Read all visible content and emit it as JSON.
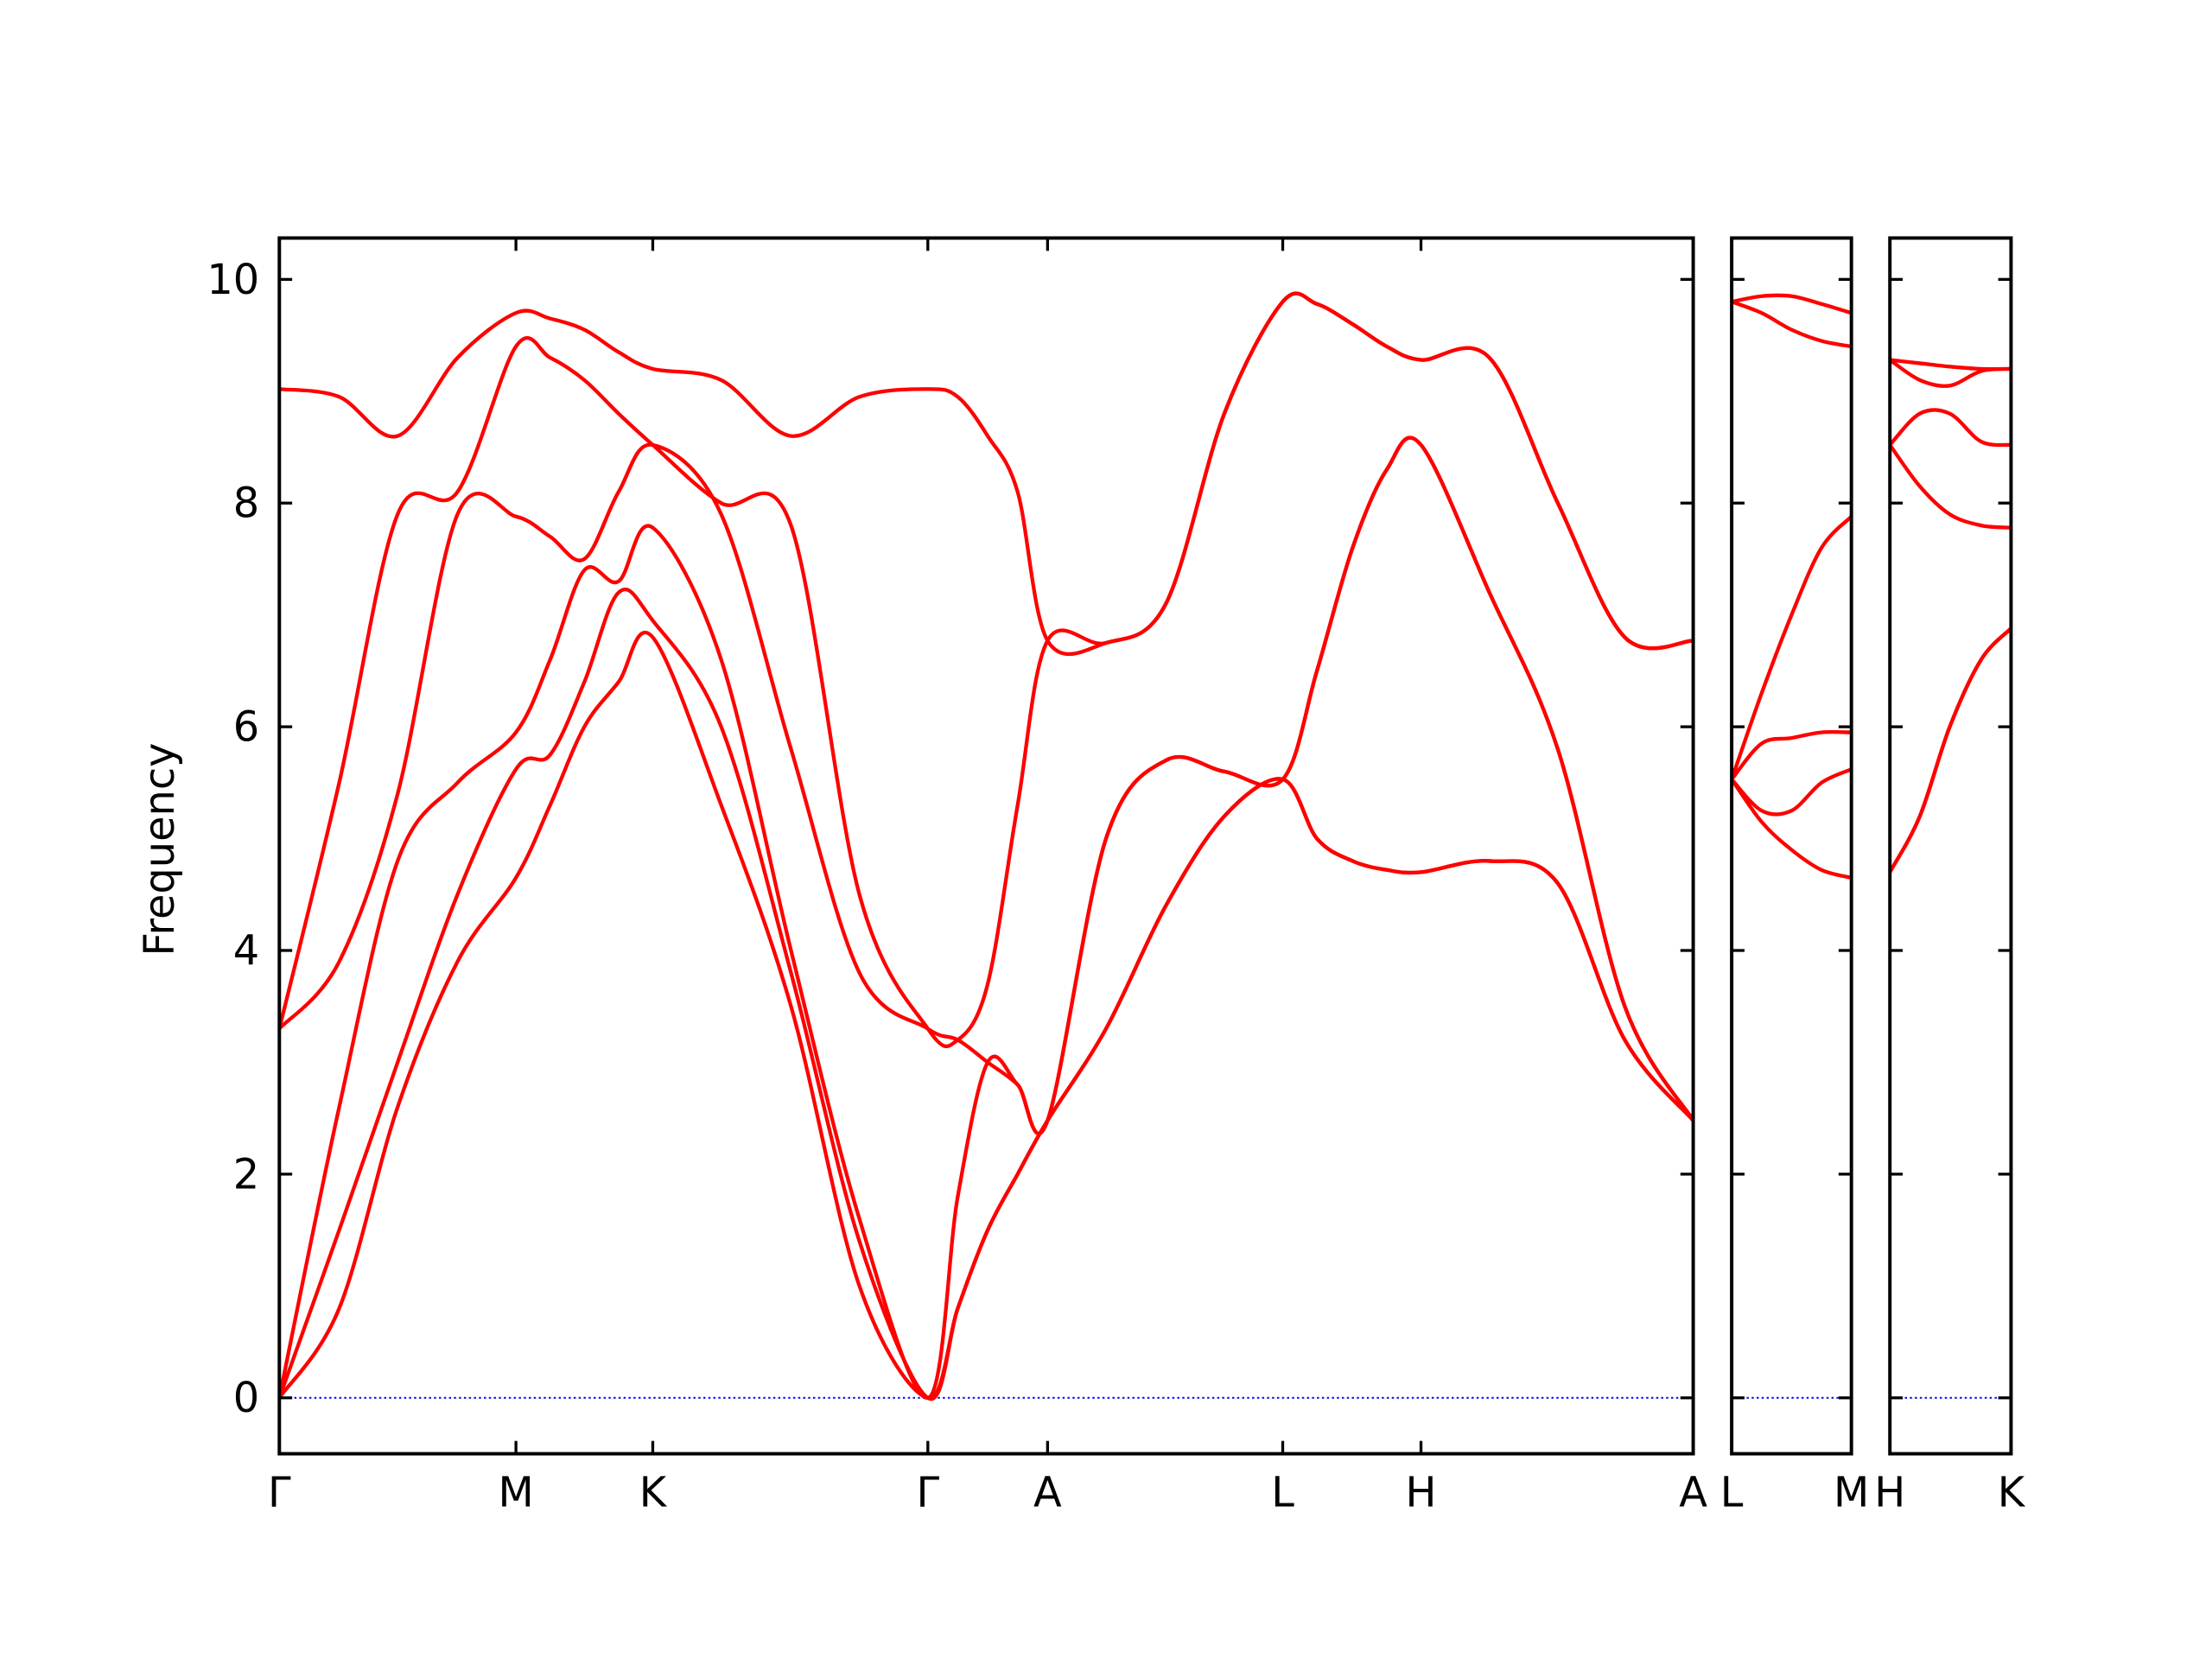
{
  "chart_data": [
    {
      "type": "line",
      "ylabel": "Frequency",
      "x": [
        0,
        0.42,
        0.83,
        1.25,
        1.66,
        1.9,
        2.14,
        2.38,
        2.62,
        3.1,
        3.59,
        4.07,
        4.55,
        4.76,
        4.97,
        5.18,
        5.39,
        5.8,
        6.22,
        6.63,
        7.04,
        7.28,
        7.53,
        7.77,
        8.01,
        8.49,
        8.97,
        9.44,
        9.92
      ],
      "xlim": [
        0,
        9.92
      ],
      "xticks": [
        {
          "value": 0,
          "label": "Γ"
        },
        {
          "value": 1.66,
          "label": "M"
        },
        {
          "value": 2.62,
          "label": "K"
        },
        {
          "value": 4.55,
          "label": "Γ"
        },
        {
          "value": 5.39,
          "label": "A"
        },
        {
          "value": 7.04,
          "label": "L"
        },
        {
          "value": 8.01,
          "label": "H"
        },
        {
          "value": 9.92,
          "label": "A"
        }
      ],
      "ylim": [
        -0.5,
        10.37
      ],
      "yticks": [
        0,
        2,
        4,
        6,
        8,
        10
      ],
      "zero_line": {
        "value": 0,
        "color": "#0000ff"
      },
      "series": [
        {
          "color": "#ff0000",
          "values": [
            0,
            0.8,
            2.6,
            3.9,
            4.65,
            5.3,
            6.0,
            6.4,
            6.8,
            5.3,
            3.5,
            1.0,
            0,
            0.8,
            1.5,
            2.0,
            2.48,
            3.3,
            4.4,
            5.2,
            5.53,
            5.0,
            4.8,
            4.72,
            4.7,
            4.8,
            4.6,
            3.2,
            2.48
          ]
        },
        {
          "color": "#ff0000",
          "values": [
            0,
            1.5,
            3.0,
            4.5,
            5.62,
            5.75,
            6.4,
            7.2,
            6.95,
            6.0,
            3.8,
            1.4,
            0,
            0.8,
            1.5,
            2.0,
            2.48,
            3.3,
            4.4,
            5.2,
            5.53,
            5.0,
            4.8,
            4.72,
            4.7,
            4.8,
            4.6,
            3.2,
            2.48
          ]
        },
        {
          "color": "#ff0000",
          "values": [
            0,
            2.6,
            4.8,
            5.5,
            5.95,
            6.6,
            7.4,
            7.3,
            7.78,
            6.6,
            4.0,
            1.6,
            0,
            1.8,
            3.0,
            2.8,
            2.48,
            5.0,
            5.7,
            5.6,
            5.53,
            6.5,
            7.6,
            8.3,
            8.52,
            7.2,
            5.8,
            3.5,
            2.48
          ]
        },
        {
          "color": "#ff0000",
          "values": [
            3.3,
            3.9,
            5.4,
            7.9,
            7.88,
            7.7,
            7.5,
            8.1,
            8.52,
            7.9,
            5.8,
            3.8,
            3.3,
            3.2,
            3.0,
            2.8,
            2.48,
            5.0,
            5.7,
            5.6,
            5.53,
            6.5,
            7.6,
            8.3,
            8.52,
            7.2,
            5.8,
            3.5,
            2.48
          ]
        },
        {
          "color": "#ff0000",
          "values": [
            3.3,
            5.5,
            7.9,
            8.1,
            9.4,
            9.3,
            9.1,
            8.8,
            8.52,
            8.0,
            7.8,
            4.5,
            3.3,
            3.2,
            3.7,
            5.3,
            6.77,
            6.75,
            7.1,
            8.8,
            9.8,
            9.78,
            9.6,
            9.4,
            9.28,
            9.3,
            8.0,
            6.8,
            6.77
          ]
        },
        {
          "color": "#ff0000",
          "values": [
            9.02,
            8.95,
            8.6,
            9.3,
            9.7,
            9.65,
            9.55,
            9.35,
            9.2,
            9.1,
            8.6,
            8.95,
            9.02,
            8.95,
            8.6,
            8.1,
            6.77,
            6.75,
            7.1,
            8.8,
            9.8,
            9.78,
            9.6,
            9.4,
            9.28,
            9.3,
            8.0,
            6.8,
            6.77
          ]
        }
      ]
    },
    {
      "type": "line",
      "x": [
        0,
        0.21,
        0.42,
        0.63,
        0.84
      ],
      "xlim": [
        0,
        0.84
      ],
      "xticks": [
        {
          "value": 0,
          "label": "L"
        },
        {
          "value": 0.84,
          "label": "M"
        }
      ],
      "ylim": [
        -0.5,
        10.37
      ],
      "zero_line": {
        "value": 0,
        "color": "#0000ff"
      },
      "series": [
        {
          "color": "#ff0000",
          "values": [
            5.53,
            5.15,
            4.9,
            4.72,
            4.65
          ]
        },
        {
          "color": "#ff0000",
          "values": [
            5.53,
            5.25,
            5.25,
            5.5,
            5.62
          ]
        },
        {
          "color": "#ff0000",
          "values": [
            5.53,
            5.85,
            5.9,
            5.95,
            5.95
          ]
        },
        {
          "color": "#ff0000",
          "values": [
            5.53,
            6.3,
            7.0,
            7.6,
            7.88
          ]
        },
        {
          "color": "#ff0000",
          "values": [
            9.8,
            9.7,
            9.55,
            9.45,
            9.4
          ]
        },
        {
          "color": "#ff0000",
          "values": [
            9.8,
            9.85,
            9.85,
            9.78,
            9.7
          ]
        }
      ]
    },
    {
      "type": "line",
      "x": [
        0,
        0.21,
        0.42,
        0.64,
        0.85
      ],
      "xlim": [
        0,
        0.85
      ],
      "xticks": [
        {
          "value": 0,
          "label": "H"
        },
        {
          "value": 0.85,
          "label": "K"
        }
      ],
      "ylim": [
        -0.5,
        10.37
      ],
      "zero_line": {
        "value": 0,
        "color": "#0000ff"
      },
      "series": [
        {
          "color": "#ff0000",
          "values": [
            4.7,
            5.2,
            6.0,
            6.6,
            6.88
          ]
        },
        {
          "color": "#ff0000",
          "values": [
            4.7,
            5.2,
            6.0,
            6.6,
            6.88
          ]
        },
        {
          "color": "#ff0000",
          "values": [
            8.52,
            8.15,
            7.9,
            7.8,
            7.78
          ]
        },
        {
          "color": "#ff0000",
          "values": [
            8.52,
            8.8,
            8.8,
            8.55,
            8.52
          ]
        },
        {
          "color": "#ff0000",
          "values": [
            9.28,
            9.1,
            9.05,
            9.18,
            9.2
          ]
        },
        {
          "color": "#ff0000",
          "values": [
            9.28,
            9.25,
            9.22,
            9.2,
            9.2
          ]
        }
      ]
    }
  ]
}
